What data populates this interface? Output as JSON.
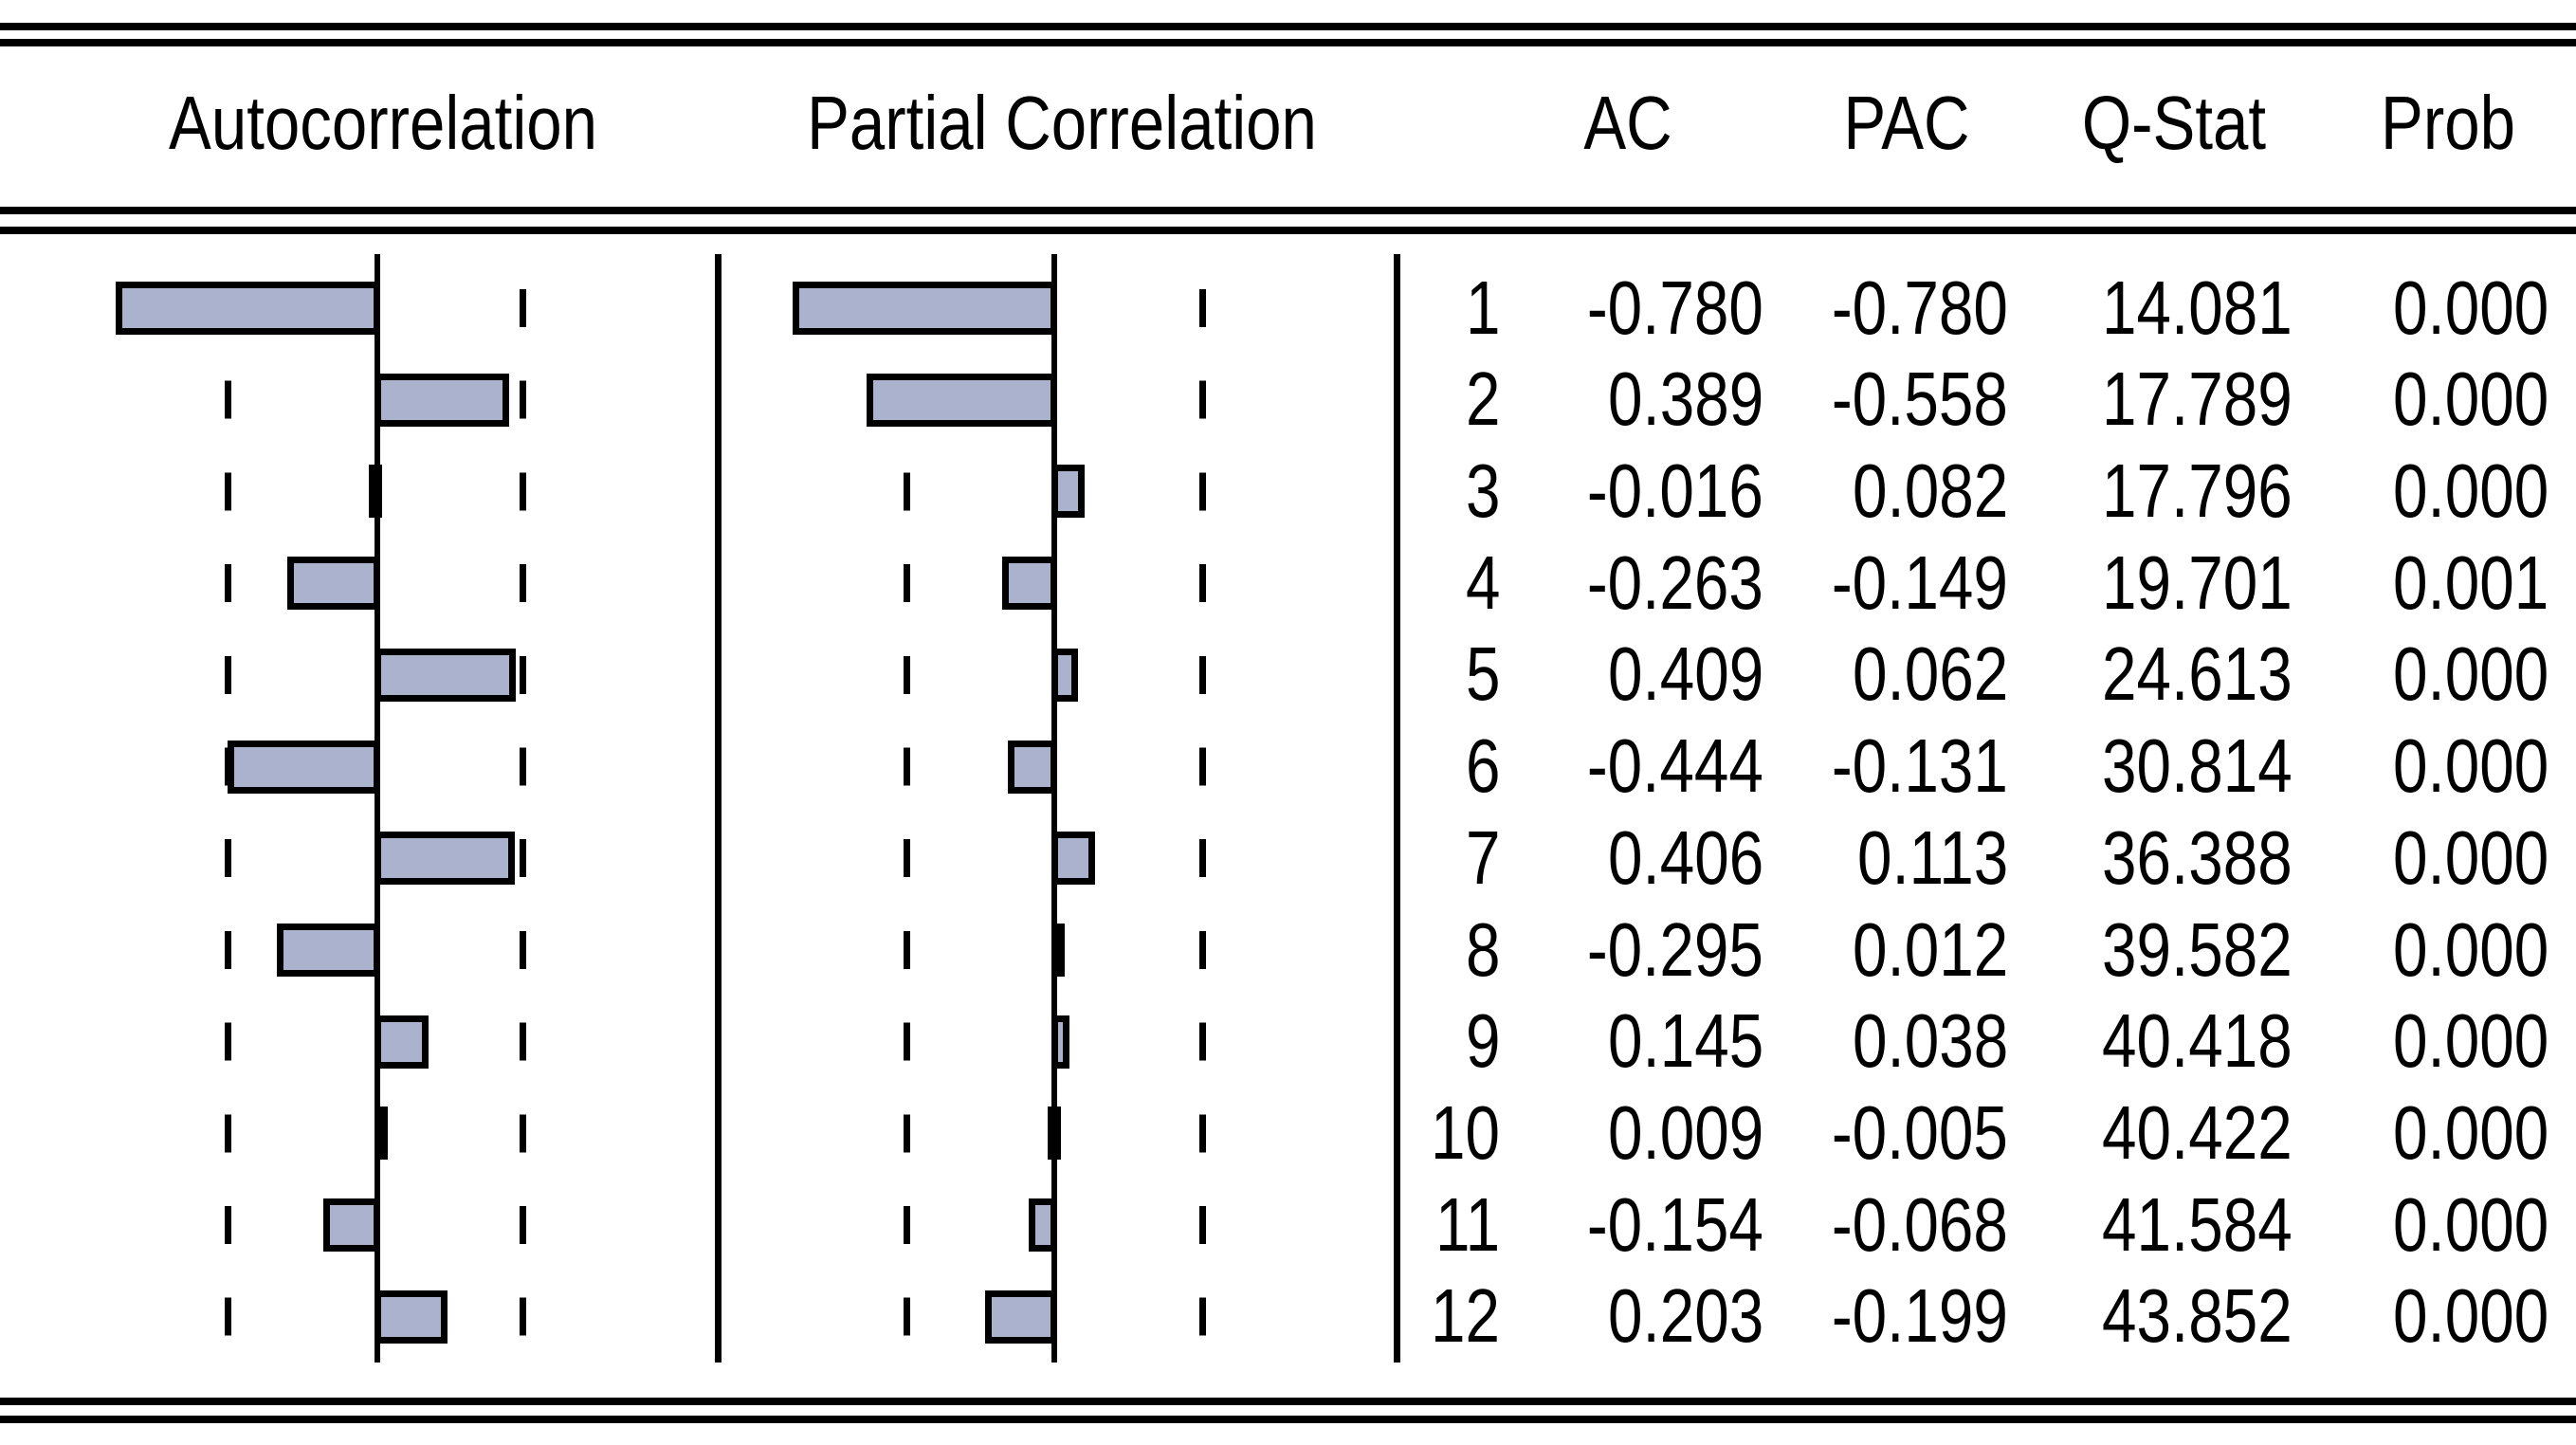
{
  "header": {
    "autocorrelation": "Autocorrelation",
    "partial_correlation": "Partial Correlation",
    "ac": "AC",
    "pac": "PAC",
    "qstat": "Q-Stat",
    "prob": "Prob"
  },
  "chart_data": {
    "type": "bar",
    "orientation": "horizontal",
    "panels": [
      "Autocorrelation",
      "Partial Correlation"
    ],
    "lags": [
      1,
      2,
      3,
      4,
      5,
      6,
      7,
      8,
      9,
      10,
      11,
      12
    ],
    "series": [
      {
        "name": "AC",
        "values": [
          -0.78,
          0.389,
          -0.016,
          -0.263,
          0.409,
          -0.444,
          0.406,
          -0.295,
          0.145,
          0.009,
          -0.154,
          0.203
        ]
      },
      {
        "name": "PAC",
        "values": [
          -0.78,
          -0.558,
          0.082,
          -0.149,
          0.062,
          -0.131,
          0.113,
          0.012,
          0.038,
          -0.005,
          -0.068,
          -0.199
        ]
      }
    ],
    "qstat": [
      14.081,
      17.789,
      17.796,
      19.701,
      24.613,
      30.814,
      36.388,
      39.582,
      40.418,
      40.422,
      41.584,
      43.852
    ],
    "prob": [
      0.0,
      0.0,
      0.0,
      0.001,
      0.0,
      0.0,
      0.0,
      0.0,
      0.0,
      0.0,
      0.0,
      0.0
    ],
    "xlim": [
      -1,
      1
    ],
    "confidence_band": 0.447,
    "grid": "dashed-confidence-bands",
    "bar_color": "#aab2cd",
    "bar_border_color": "#000000",
    "line_color": "#000000"
  },
  "table": {
    "columns": [
      "lag",
      "AC",
      "PAC",
      "Q-Stat",
      "Prob"
    ],
    "decimals": 3
  }
}
